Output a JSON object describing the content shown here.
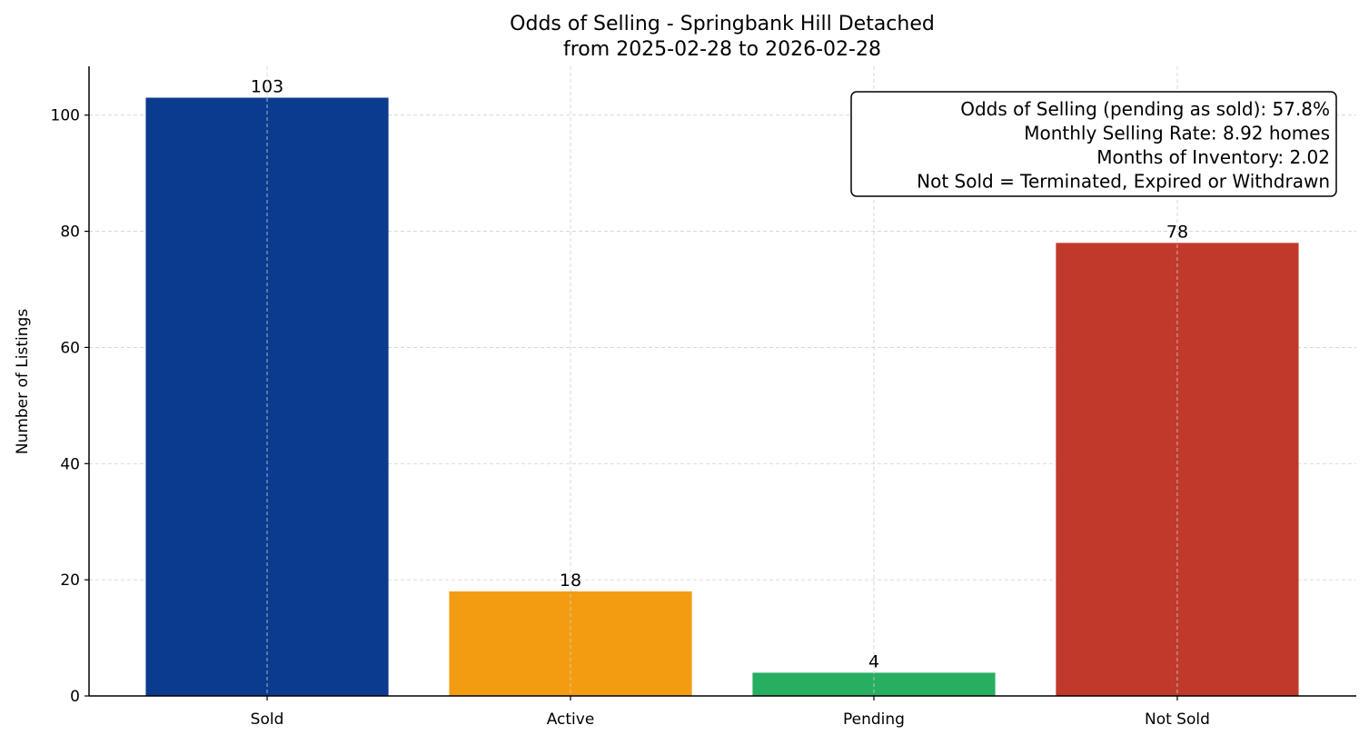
{
  "chart_data": {
    "type": "bar",
    "title": "Odds of Selling - Springbank Hill Detached",
    "subtitle": "from 2025-02-28 to 2026-02-28",
    "xlabel": "",
    "ylabel": "Number of Listings",
    "categories": [
      "Sold",
      "Active",
      "Pending",
      "Not Sold"
    ],
    "values": [
      103,
      18,
      4,
      78
    ],
    "data_labels": [
      "103",
      "18",
      "4",
      "78"
    ],
    "colors": [
      "#0b3b8f",
      "#f39c12",
      "#27ae60",
      "#c0392b"
    ],
    "ylim": [
      0,
      108.4
    ],
    "yticks": [
      0,
      20,
      40,
      60,
      80,
      100
    ],
    "ytick_labels": [
      "0",
      "20",
      "40",
      "60",
      "80",
      "100"
    ],
    "grid": true,
    "annotation": {
      "lines": [
        "Odds of Selling (pending as sold): 57.8%",
        "Monthly Selling Rate: 8.92 homes",
        "Months of Inventory: 2.02",
        "Not Sold = Terminated, Expired or Withdrawn"
      ],
      "placement": "top-right"
    }
  }
}
